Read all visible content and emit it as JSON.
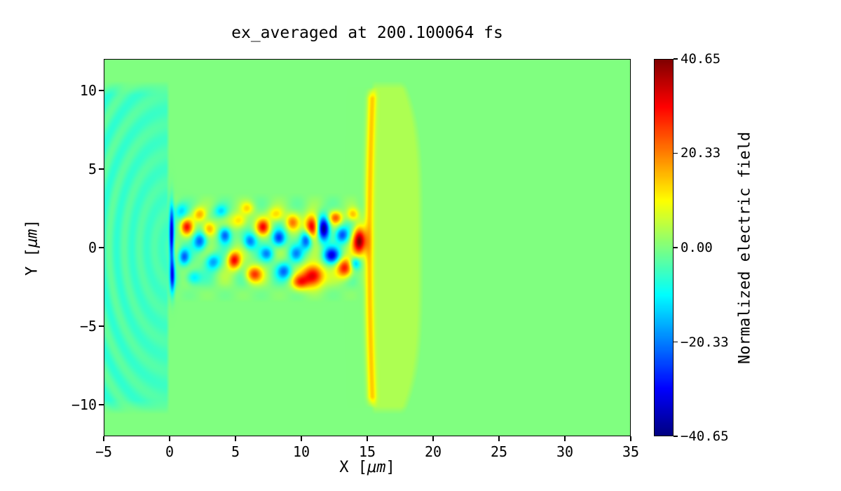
{
  "chart_data": {
    "type": "heatmap",
    "title": "ex_averaged at 200.100064 fs",
    "xlabel": {
      "pre": "X [",
      "mu": "μm",
      "post": "]"
    },
    "ylabel": {
      "pre": "Y [",
      "mu": "μm",
      "post": "]"
    },
    "xlim": [
      -5,
      35
    ],
    "ylim": [
      -12,
      12
    ],
    "xticks": [
      -5,
      0,
      5,
      10,
      15,
      20,
      25,
      30,
      35
    ],
    "xtick_labels": [
      "−5",
      "0",
      "5",
      "10",
      "15",
      "20",
      "25",
      "30",
      "35"
    ],
    "yticks": [
      -10,
      -5,
      0,
      5,
      10
    ],
    "ytick_labels": [
      "−10",
      "−5",
      "0",
      "5",
      "10"
    ],
    "grid": false,
    "colorbar": {
      "label": "Normalized electric field",
      "tick_values": [
        40.65,
        20.33,
        0,
        -20.33,
        -40.65
      ],
      "tick_labels": [
        "40.65",
        "20.33",
        "0.00",
        "−20.33",
        "−40.65"
      ],
      "vmin": -40.65,
      "vmax": 40.65,
      "colormap": "jet",
      "background_color_hex": "#80ff80"
    },
    "field_features": {
      "background_value": 0,
      "preplasma_band": {
        "x0": -5,
        "x1": 0,
        "y1": 10.6,
        "value": -4.5
      },
      "reflected_waves": {
        "amplitude": 2.4,
        "wavelength": 1.15
      },
      "front_band": {
        "x0": 15.0,
        "x1": 19.3,
        "y1": 10.4,
        "value": 3.6
      },
      "front_arc": {
        "x": 15.12,
        "width": 0.32,
        "y1": 10.2,
        "value": 13
      },
      "channel": {
        "x0": 0,
        "x1": 15,
        "half_width": 3.0,
        "ripple_amplitude": 4.5
      },
      "blobs": [
        {
          "x": 0.15,
          "y": 0.9,
          "rx": 0.18,
          "ry": 1.7,
          "v": -34
        },
        {
          "x": 0.2,
          "y": -1.8,
          "rx": 0.2,
          "ry": 1.1,
          "v": -28
        },
        {
          "x": 0.9,
          "y": 2.3,
          "rx": 0.5,
          "ry": 0.5,
          "v": -13
        },
        {
          "x": 1.3,
          "y": 1.3,
          "rx": 0.45,
          "ry": 0.5,
          "v": 26
        },
        {
          "x": 1.1,
          "y": -0.6,
          "rx": 0.4,
          "ry": 0.5,
          "v": -21
        },
        {
          "x": 1.8,
          "y": -1.9,
          "rx": 0.55,
          "ry": 0.45,
          "v": -14
        },
        {
          "x": 2.3,
          "y": 0.4,
          "rx": 0.5,
          "ry": 0.55,
          "v": -23
        },
        {
          "x": 2.3,
          "y": 2.1,
          "rx": 0.5,
          "ry": 0.45,
          "v": 17
        },
        {
          "x": 3.0,
          "y": 1.2,
          "rx": 0.5,
          "ry": 0.5,
          "v": 20
        },
        {
          "x": 3.3,
          "y": -0.9,
          "rx": 0.55,
          "ry": 0.5,
          "v": -18
        },
        {
          "x": 3.9,
          "y": 2.3,
          "rx": 0.5,
          "ry": 0.4,
          "v": -13
        },
        {
          "x": 4.2,
          "y": 0.8,
          "rx": 0.45,
          "ry": 0.5,
          "v": -24
        },
        {
          "x": 4.9,
          "y": -0.8,
          "rx": 0.5,
          "ry": 0.55,
          "v": 31
        },
        {
          "x": 5.3,
          "y": 1.7,
          "rx": 0.6,
          "ry": 0.5,
          "v": 15
        },
        {
          "x": 5.9,
          "y": 2.5,
          "rx": 0.5,
          "ry": 0.4,
          "v": 12
        },
        {
          "x": 6.1,
          "y": 0.4,
          "rx": 0.5,
          "ry": 0.5,
          "v": -21
        },
        {
          "x": 6.4,
          "y": -1.7,
          "rx": 0.6,
          "ry": 0.5,
          "v": 25
        },
        {
          "x": 7.1,
          "y": 1.3,
          "rx": 0.5,
          "ry": 0.5,
          "v": 27
        },
        {
          "x": 7.4,
          "y": -0.4,
          "rx": 0.5,
          "ry": 0.45,
          "v": -18
        },
        {
          "x": 8.1,
          "y": 2.1,
          "rx": 0.6,
          "ry": 0.45,
          "v": 14
        },
        {
          "x": 8.3,
          "y": 0.6,
          "rx": 0.5,
          "ry": 0.5,
          "v": -26
        },
        {
          "x": 8.7,
          "y": -1.5,
          "rx": 0.55,
          "ry": 0.5,
          "v": -20
        },
        {
          "x": 9.3,
          "y": 1.6,
          "rx": 0.5,
          "ry": 0.5,
          "v": 18
        },
        {
          "x": 9.6,
          "y": -0.4,
          "rx": 0.5,
          "ry": 0.5,
          "v": -16
        },
        {
          "x": 9.9,
          "y": -2.2,
          "rx": 0.6,
          "ry": 0.45,
          "v": 21
        },
        {
          "x": 10.4,
          "y": 0.5,
          "rx": 0.45,
          "ry": 0.6,
          "v": -27
        },
        {
          "x": 10.8,
          "y": 1.3,
          "rx": 0.5,
          "ry": 0.75,
          "v": 37
        },
        {
          "x": 11.7,
          "y": 1.2,
          "rx": 0.45,
          "ry": 0.75,
          "v": -40
        },
        {
          "x": 10.9,
          "y": -1.8,
          "rx": 0.8,
          "ry": 0.7,
          "v": 36
        },
        {
          "x": 12.3,
          "y": -0.5,
          "rx": 0.6,
          "ry": 0.5,
          "v": -30
        },
        {
          "x": 12.6,
          "y": 1.9,
          "rx": 0.5,
          "ry": 0.4,
          "v": 21
        },
        {
          "x": 13.1,
          "y": 0.8,
          "rx": 0.5,
          "ry": 0.5,
          "v": -24
        },
        {
          "x": 13.3,
          "y": -1.3,
          "rx": 0.6,
          "ry": 0.6,
          "v": 30
        },
        {
          "x": 14.4,
          "y": 0.4,
          "rx": 0.5,
          "ry": 0.85,
          "v": 40
        },
        {
          "x": 14.1,
          "y": -1.0,
          "rx": 0.4,
          "ry": 0.4,
          "v": -18
        },
        {
          "x": 13.9,
          "y": 2.1,
          "rx": 0.45,
          "ry": 0.4,
          "v": 16
        }
      ]
    }
  }
}
